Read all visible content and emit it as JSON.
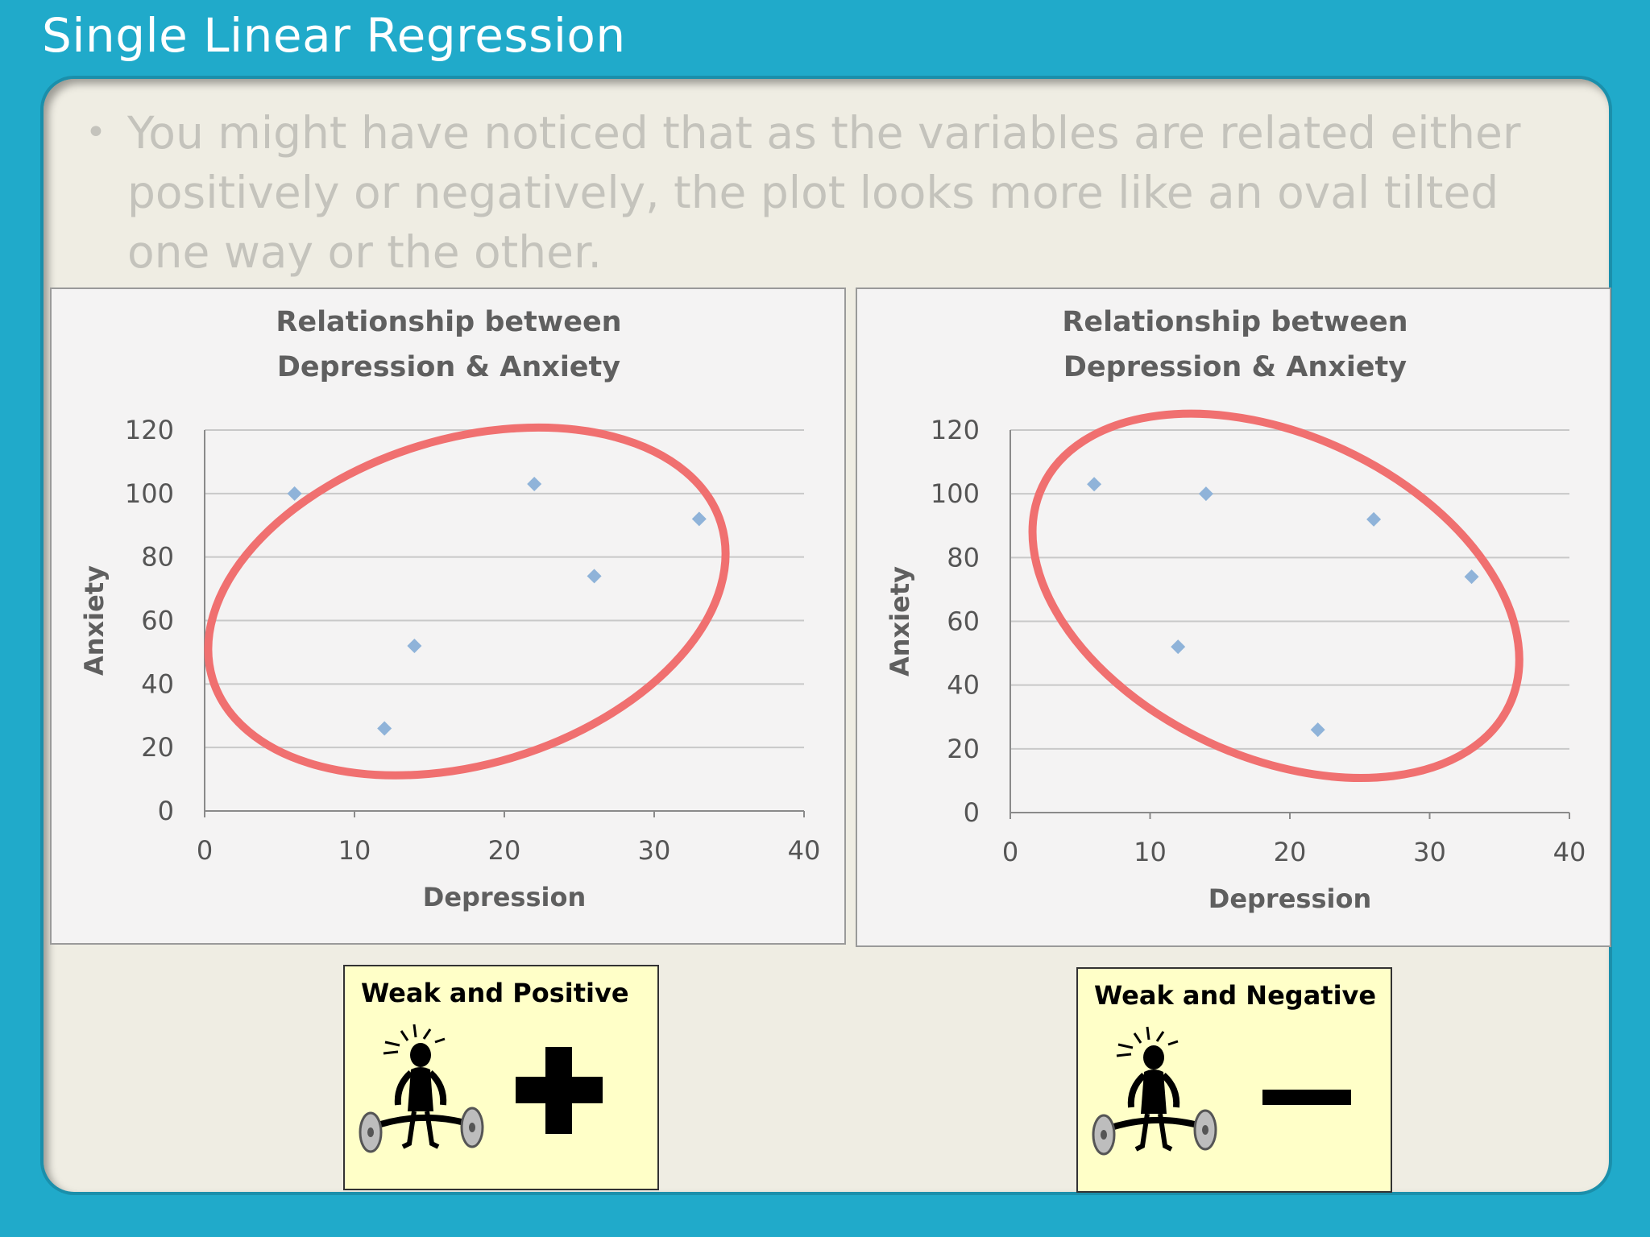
{
  "slide": {
    "title": "Single Linear Regression",
    "bullet": "You might have noticed that as the variables are related either positively or negatively, the plot looks more like an oval tilted one way or the other."
  },
  "colors": {
    "frame": "#20aaca",
    "panel": "#efede3",
    "marker": "#8fb3d9",
    "ellipse": "#f07070",
    "callout": "#ffffc8"
  },
  "chart_data": [
    {
      "type": "scatter",
      "title_line1": "Relationship between",
      "title_line2": "Depression & Anxiety",
      "xlabel": "Depression",
      "ylabel": "Anxiety",
      "xlim": [
        0,
        40
      ],
      "ylim": [
        0,
        120
      ],
      "xticks": [
        "0",
        "10",
        "20",
        "30",
        "40"
      ],
      "yticks": [
        "0",
        "20",
        "40",
        "60",
        "80",
        "100",
        "120"
      ],
      "grid": "horizontal",
      "marker": "diamond",
      "points": [
        {
          "x": 6,
          "y": 100
        },
        {
          "x": 12,
          "y": 26
        },
        {
          "x": 14,
          "y": 52
        },
        {
          "x": 22,
          "y": 103
        },
        {
          "x": 26,
          "y": 74
        },
        {
          "x": 33,
          "y": 92
        }
      ],
      "annotation": "red ellipse tilted upward (positive)"
    },
    {
      "type": "scatter",
      "title_line1": "Relationship between",
      "title_line2": "Depression & Anxiety",
      "xlabel": "Depression",
      "ylabel": "Anxiety",
      "xlim": [
        0,
        40
      ],
      "ylim": [
        0,
        120
      ],
      "xticks": [
        "0",
        "10",
        "20",
        "30",
        "40"
      ],
      "yticks": [
        "0",
        "20",
        "40",
        "60",
        "80",
        "100",
        "120"
      ],
      "grid": "horizontal",
      "marker": "diamond",
      "points": [
        {
          "x": 6,
          "y": 103
        },
        {
          "x": 12,
          "y": 52
        },
        {
          "x": 14,
          "y": 100
        },
        {
          "x": 22,
          "y": 26
        },
        {
          "x": 26,
          "y": 92
        },
        {
          "x": 33,
          "y": 74
        }
      ],
      "annotation": "red ellipse tilted downward (negative)"
    }
  ],
  "callouts": {
    "left": {
      "label": "Weak and Positive",
      "sign_icon": "plus-icon",
      "figure_icon": "weightlifter-icon"
    },
    "right": {
      "label": "Weak and Negative",
      "sign_icon": "minus-icon",
      "figure_icon": "weightlifter-icon"
    }
  }
}
